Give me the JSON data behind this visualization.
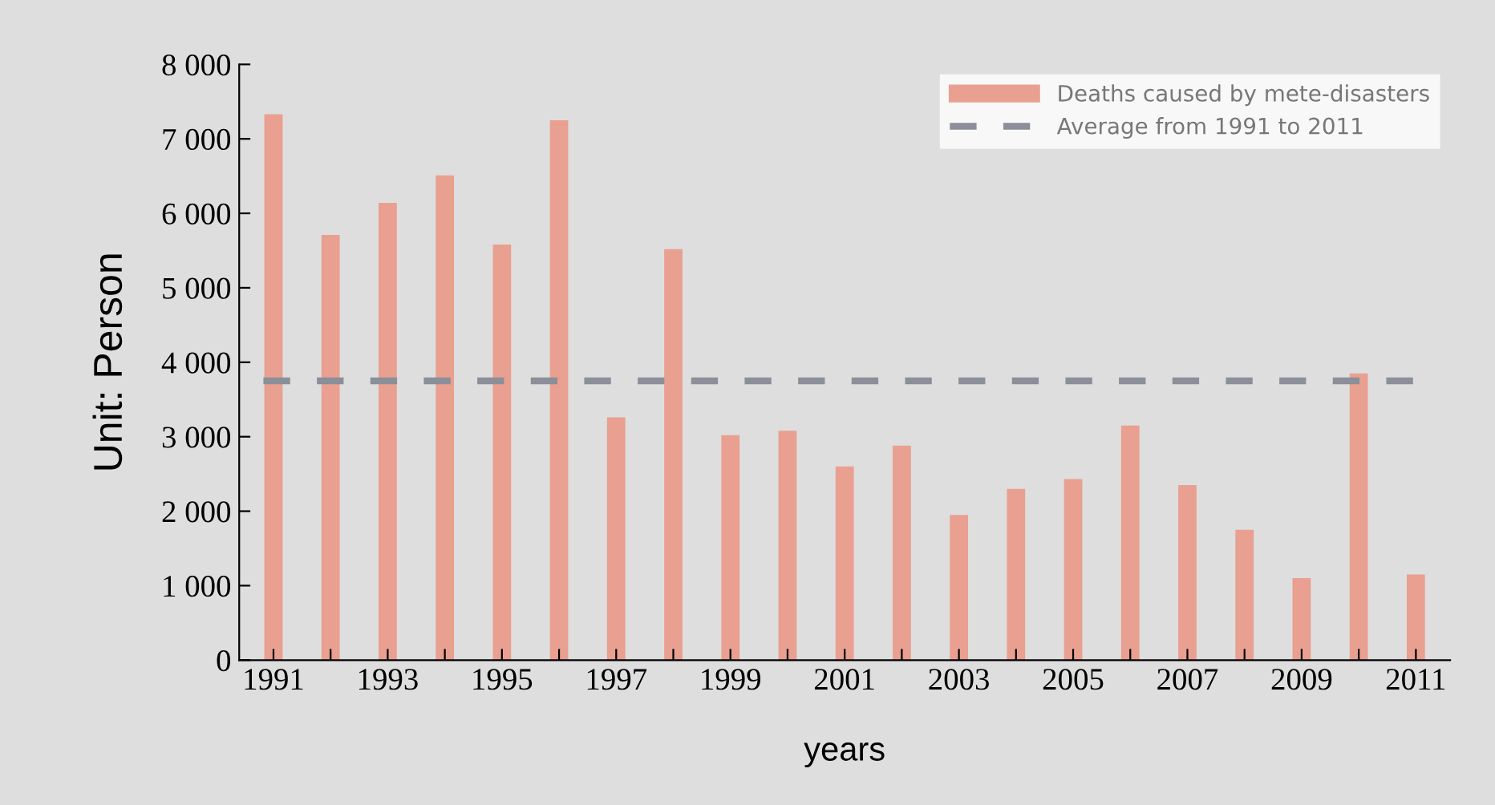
{
  "chart_data": {
    "type": "bar",
    "xlabel": "years",
    "ylabel": "Unit: Person",
    "categories": [
      "1991",
      null,
      "1993",
      null,
      "1995",
      null,
      "1997",
      null,
      "1999",
      null,
      "2001",
      null,
      "2003",
      null,
      "2005",
      null,
      "2007",
      null,
      "2009",
      null,
      "2011"
    ],
    "series": [
      {
        "name": "Deaths caused by mete-disasters",
        "color": "#e9a090",
        "values": [
          7330,
          5710,
          6140,
          6510,
          5580,
          7250,
          3260,
          5520,
          3020,
          3080,
          2600,
          2880,
          1950,
          2300,
          2430,
          3150,
          2350,
          1750,
          1100,
          3850,
          1150
        ]
      }
    ],
    "ref_lines": [
      {
        "axis": "y",
        "value": 3750,
        "label": "Average from 1991 to 2011",
        "color": "#8a8f99",
        "line_style": "dashed"
      }
    ],
    "ylim": [
      0,
      8000
    ],
    "yticks": [
      {
        "value": 0,
        "label": "0"
      },
      {
        "value": 1000,
        "label": "1 000"
      },
      {
        "value": 2000,
        "label": "2 000"
      },
      {
        "value": 3000,
        "label": "3 000"
      },
      {
        "value": 4000,
        "label": "4 000"
      },
      {
        "value": 5000,
        "label": "5 000"
      },
      {
        "value": 6000,
        "label": "6 000"
      },
      {
        "value": 7000,
        "label": "7 000"
      },
      {
        "value": 8000,
        "label": "8 000"
      }
    ],
    "grid": false,
    "legend": "top right"
  }
}
